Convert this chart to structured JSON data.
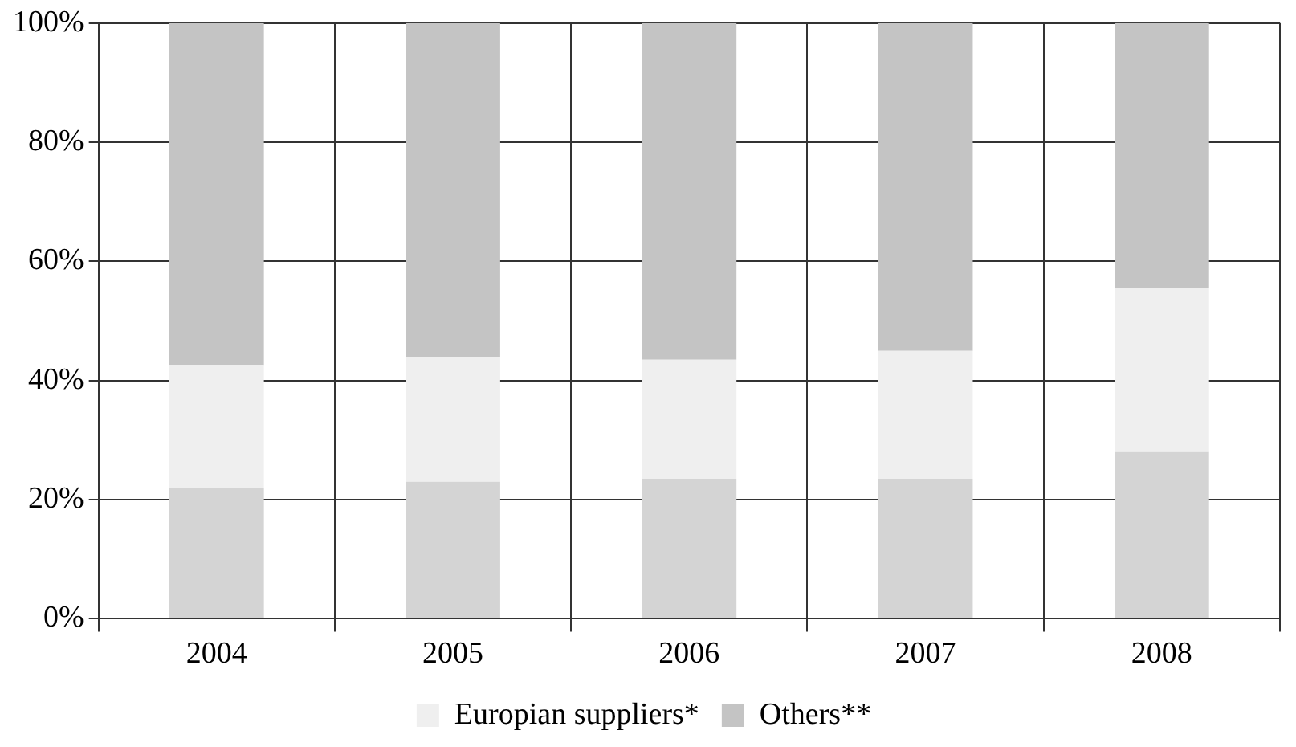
{
  "chart_data": {
    "type": "bar",
    "stacked": true,
    "categories": [
      "2004",
      "2005",
      "2006",
      "2007",
      "2008"
    ],
    "series": [
      {
        "color": "#d4d4d4",
        "values": [
          22,
          23,
          23.5,
          23.5,
          28
        ]
      },
      {
        "name": "Europian suppliers*",
        "color": "#efefef",
        "values": [
          20.5,
          21,
          20,
          21.5,
          27.5
        ]
      },
      {
        "name": "Others**",
        "color": "#c4c4c4",
        "values": [
          57.5,
          56,
          56.5,
          55,
          44.5
        ]
      }
    ],
    "ylim": [
      0,
      100
    ],
    "yticks": [
      {
        "value": 0,
        "label": "0%"
      },
      {
        "value": 20,
        "label": "20%"
      },
      {
        "value": 40,
        "label": "40%"
      },
      {
        "value": 60,
        "label": "60%"
      },
      {
        "value": 80,
        "label": "80%"
      },
      {
        "value": 100,
        "label": "100%"
      }
    ],
    "grid": true,
    "legend": "bottom"
  }
}
